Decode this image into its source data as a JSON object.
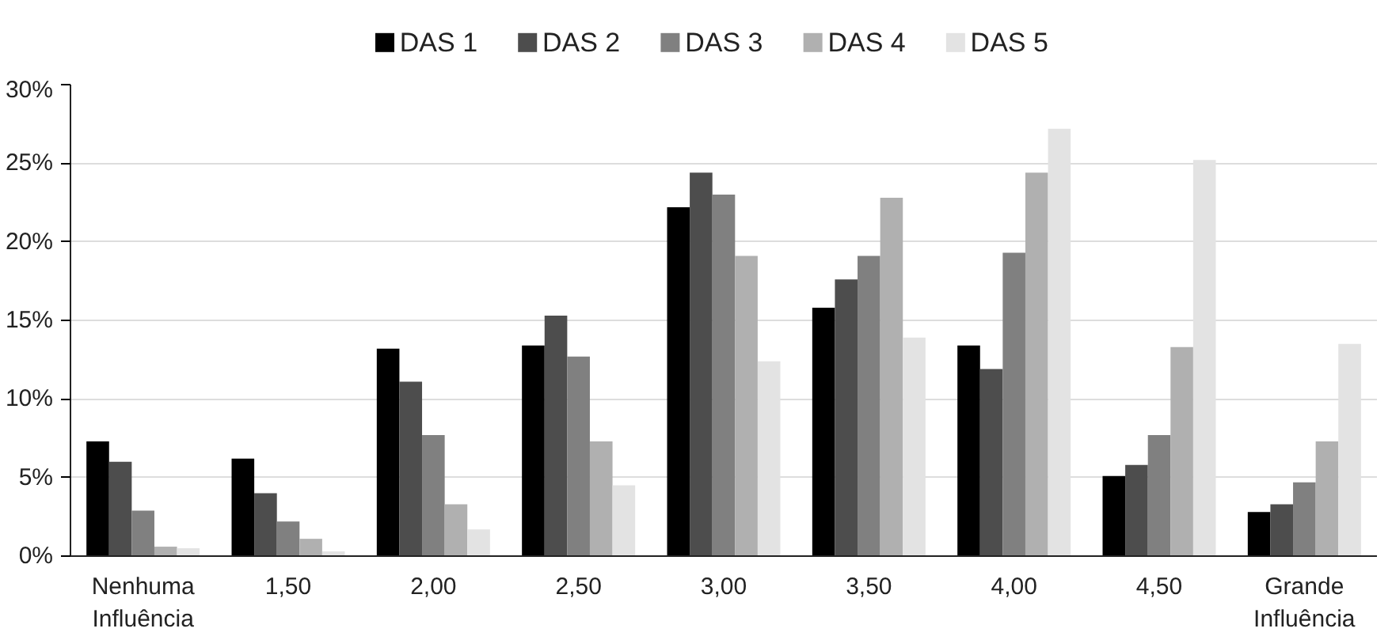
{
  "chart_data": {
    "type": "bar",
    "categories": [
      "Nenhuma\nInfluência",
      "1,50",
      "2,00",
      "2,50",
      "3,00",
      "3,50",
      "4,00",
      "4,50",
      "Grande\nInfluência"
    ],
    "series": [
      {
        "name": "DAS 1",
        "color": "#000000",
        "values": [
          7.3,
          6.2,
          13.2,
          13.4,
          22.2,
          15.8,
          13.4,
          5.1,
          2.8
        ]
      },
      {
        "name": "DAS 2",
        "color": "#4d4d4d",
        "values": [
          6.0,
          4.0,
          11.1,
          15.3,
          24.4,
          17.6,
          11.9,
          5.8,
          3.3
        ]
      },
      {
        "name": "DAS 3",
        "color": "#808080",
        "values": [
          2.9,
          2.2,
          7.7,
          12.7,
          23.0,
          19.1,
          19.3,
          7.7,
          4.7
        ]
      },
      {
        "name": "DAS 4",
        "color": "#b0b0b0",
        "values": [
          0.6,
          1.1,
          3.3,
          7.3,
          19.1,
          22.8,
          24.4,
          13.3,
          7.3
        ]
      },
      {
        "name": "DAS 5",
        "color": "#e3e3e3",
        "values": [
          0.5,
          0.3,
          1.7,
          4.5,
          12.4,
          13.9,
          27.2,
          25.2,
          13.5
        ]
      }
    ],
    "ylim": [
      0,
      30
    ],
    "yticks": [
      {
        "value": 0,
        "label": "0%"
      },
      {
        "value": 5,
        "label": "5%"
      },
      {
        "value": 10,
        "label": "10%"
      },
      {
        "value": 15,
        "label": "15%"
      },
      {
        "value": 20,
        "label": "20%"
      },
      {
        "value": 25,
        "label": "25%"
      },
      {
        "value": 30,
        "label": "30%"
      }
    ],
    "grid": "y",
    "legend": "top"
  }
}
